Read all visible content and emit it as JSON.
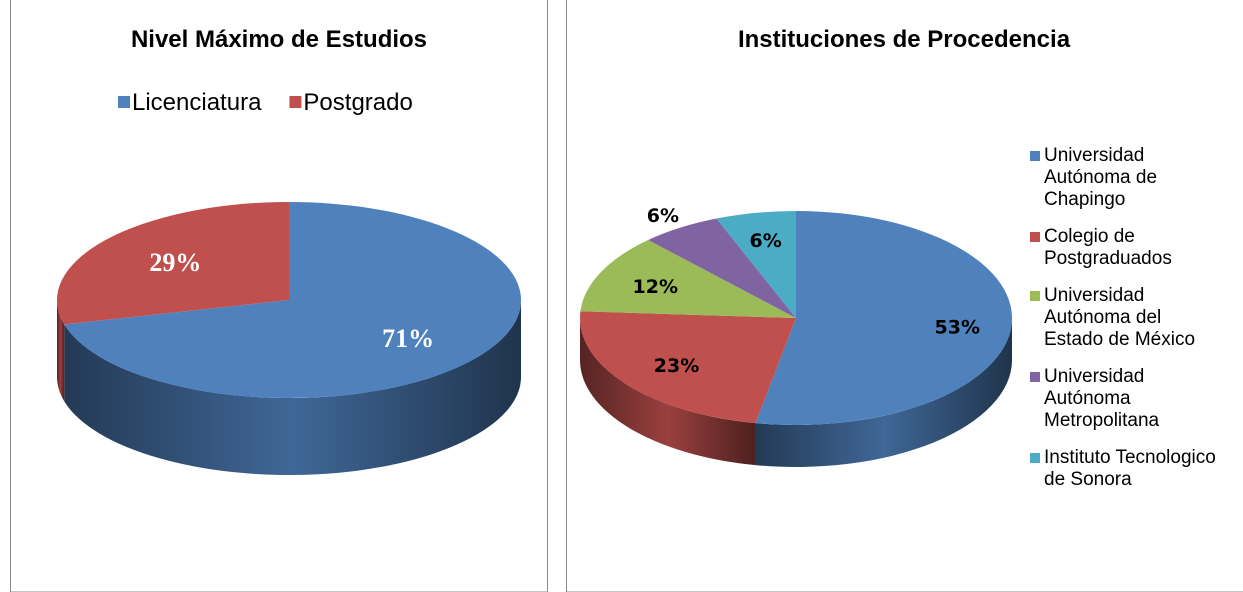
{
  "chart_data": [
    {
      "type": "pie3d",
      "title": "Nivel Máximo de Estudios",
      "categories": [
        "Licenciatura",
        "Postgrado"
      ],
      "values": [
        71,
        29
      ],
      "value_labels": [
        "71%",
        "29%"
      ],
      "colors": [
        "#4f81bd",
        "#c0504d"
      ],
      "legend": "top"
    },
    {
      "type": "pie3d",
      "title": "Instituciones de Procedencia",
      "categories": [
        "Universidad Autónoma de Chapingo",
        "Colegio de Postgraduados",
        "Universidad Autónoma del Estado de México",
        "Universidad Autónoma Metropolitana",
        "Instituto Tecnologico de Sonora"
      ],
      "values": [
        53,
        23,
        12,
        6,
        6
      ],
      "value_labels": [
        "53%",
        "23%",
        "12%",
        "6%",
        "6%"
      ],
      "colors": [
        "#4f81bd",
        "#c0504d",
        "#9bbb59",
        "#8064a2",
        "#4bacc6"
      ],
      "legend": "right"
    }
  ]
}
